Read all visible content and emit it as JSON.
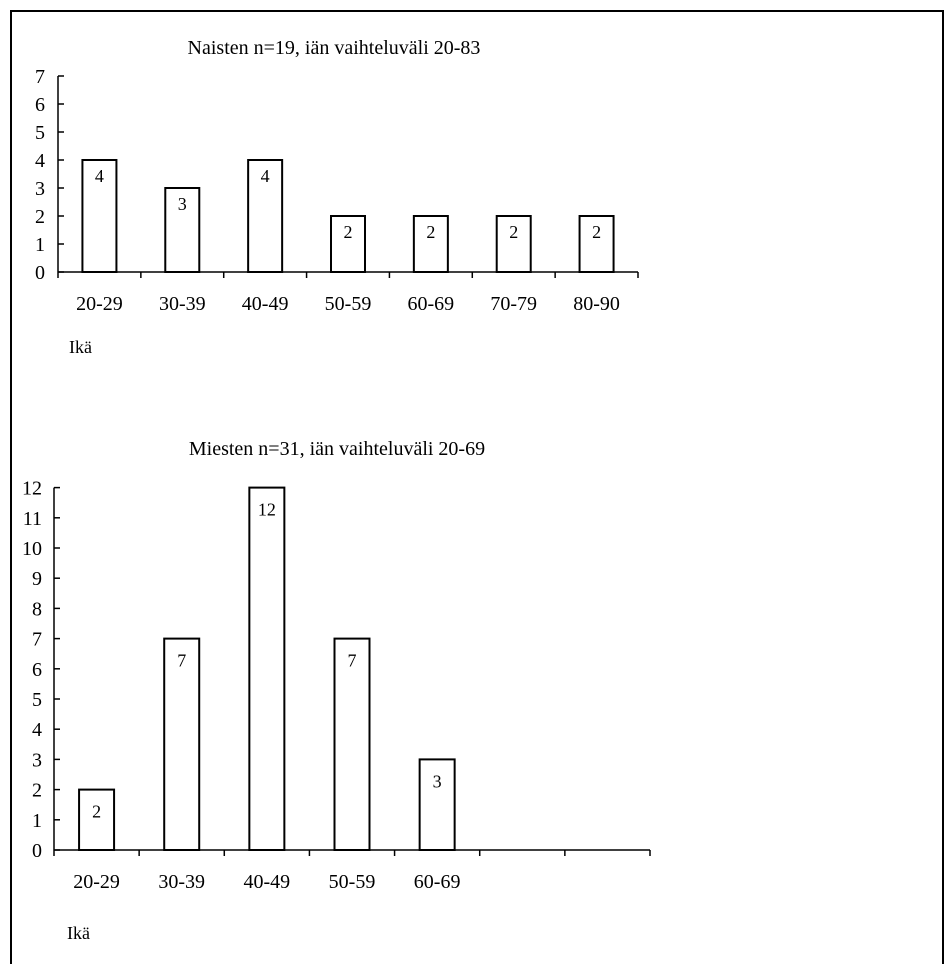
{
  "chart_data": [
    {
      "type": "bar",
      "title": "Naisten n=19, iän vaihteluväli 20-83",
      "xlabel": "Ikä",
      "ylabel": "",
      "categories": [
        "20-29",
        "30-39",
        "40-49",
        "50-59",
        "60-69",
        "70-79",
        "80-90"
      ],
      "values": [
        4,
        3,
        4,
        2,
        2,
        2,
        2
      ],
      "ylim": [
        0,
        7
      ],
      "yticks": [
        0,
        1,
        2,
        3,
        4,
        5,
        6,
        7
      ],
      "grid": false,
      "legend": "none",
      "bar_color": "#ffffff",
      "edge_color": "#000000"
    },
    {
      "type": "bar",
      "title": "Miesten n=31, iän vaihteluväli 20-69",
      "xlabel": "Ikä",
      "ylabel": "",
      "categories": [
        "20-29",
        "30-39",
        "40-49",
        "50-59",
        "60-69",
        "",
        ""
      ],
      "values": [
        2,
        7,
        12,
        7,
        3,
        null,
        null
      ],
      "ylim": [
        0,
        12
      ],
      "yticks": [
        0,
        1,
        2,
        3,
        4,
        5,
        6,
        7,
        8,
        9,
        10,
        11,
        12
      ],
      "grid": false,
      "legend": "none",
      "bar_color": "#ffffff",
      "edge_color": "#000000"
    }
  ]
}
